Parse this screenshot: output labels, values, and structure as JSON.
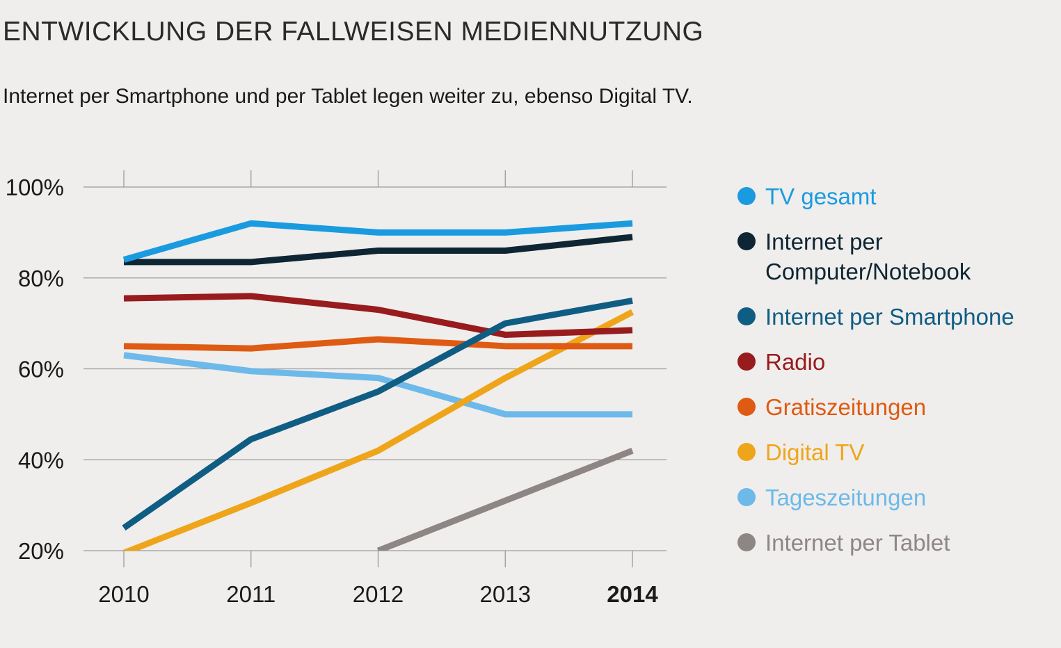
{
  "title": "ENTWICKLUNG DER FALLWEISEN MEDIENNUTZUNG",
  "subtitle": "Internet per Smartphone und per Tablet legen weiter zu, ebenso Digital TV.",
  "chart_data": {
    "type": "line",
    "x": [
      "2010",
      "2011",
      "2012",
      "2013",
      "2014"
    ],
    "x_bold": "2014",
    "ylim": [
      20,
      100
    ],
    "yticks": [
      "20%",
      "40%",
      "60%",
      "80%",
      "100%"
    ],
    "grid": true,
    "legend_position": "right",
    "series": [
      {
        "name": "TV gesamt",
        "color": "#1a9be0",
        "values": [
          84,
          92,
          90,
          90,
          92
        ]
      },
      {
        "name": "Internet per Computer/Notebook",
        "name_lines": [
          "Internet per",
          "Computer/Notebook"
        ],
        "color": "#0e2633",
        "values": [
          83.5,
          83.5,
          86,
          86,
          89
        ]
      },
      {
        "name": "Internet per Smartphone",
        "color": "#105d84",
        "values": [
          25,
          44.5,
          55,
          70,
          75
        ]
      },
      {
        "name": "Radio",
        "color": "#981b1e",
        "values": [
          75.5,
          76,
          73,
          67.5,
          68.5
        ]
      },
      {
        "name": "Gratiszeitungen",
        "color": "#df5a12",
        "values": [
          65,
          64.5,
          66.5,
          65,
          65
        ]
      },
      {
        "name": "Digital TV",
        "color": "#efa51a",
        "values": [
          19.5,
          30.5,
          42,
          58,
          72.5
        ]
      },
      {
        "name": "Tageszeitungen",
        "color": "#6cb9ea",
        "values": [
          63,
          59.5,
          58,
          50,
          50
        ]
      },
      {
        "name": "Internet per Tablet",
        "color": "#8e8685",
        "values": [
          null,
          null,
          20,
          31,
          42
        ]
      }
    ]
  }
}
